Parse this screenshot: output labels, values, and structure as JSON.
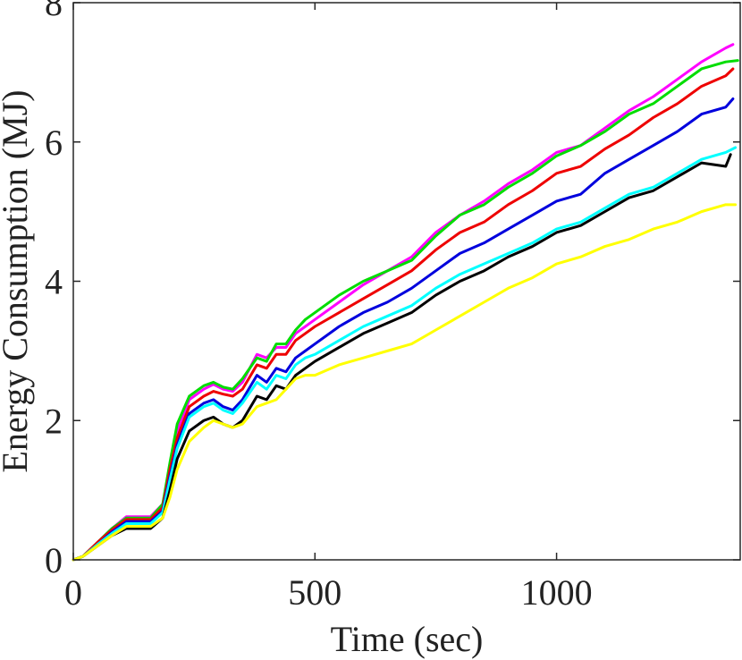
{
  "chart_data": {
    "type": "line",
    "title": "",
    "xlabel": "Time (sec)",
    "ylabel": "Energy Consumption (MJ)",
    "xlim": [
      0,
      1380
    ],
    "ylim": [
      0,
      8
    ],
    "xticks": [
      0,
      500,
      1000
    ],
    "yticks": [
      0,
      2,
      4,
      6,
      8
    ],
    "grid": false,
    "series": [
      {
        "color": "#ff00ff",
        "x": [
          0,
          20,
          50,
          80,
          110,
          160,
          185,
          200,
          215,
          240,
          270,
          290,
          310,
          330,
          350,
          380,
          400,
          420,
          440,
          460,
          480,
          500,
          550,
          600,
          650,
          700,
          750,
          800,
          850,
          900,
          950,
          1000,
          1050,
          1100,
          1150,
          1200,
          1250,
          1300,
          1350,
          1365
        ],
        "y": [
          0,
          0.05,
          0.25,
          0.45,
          0.62,
          0.62,
          0.8,
          1.35,
          1.85,
          2.3,
          2.45,
          2.52,
          2.45,
          2.42,
          2.55,
          2.95,
          2.9,
          3.05,
          3.05,
          3.25,
          3.35,
          3.45,
          3.7,
          3.95,
          4.15,
          4.35,
          4.7,
          4.95,
          5.15,
          5.4,
          5.6,
          5.85,
          5.95,
          6.2,
          6.45,
          6.65,
          6.9,
          7.15,
          7.35,
          7.4
        ]
      },
      {
        "color": "#00dd00",
        "x": [
          0,
          20,
          50,
          80,
          110,
          160,
          185,
          200,
          215,
          240,
          270,
          290,
          310,
          330,
          350,
          380,
          400,
          420,
          440,
          460,
          480,
          500,
          550,
          600,
          650,
          700,
          750,
          800,
          850,
          900,
          950,
          1000,
          1050,
          1100,
          1150,
          1200,
          1250,
          1300,
          1350,
          1375
        ],
        "y": [
          0,
          0.05,
          0.25,
          0.45,
          0.6,
          0.6,
          0.8,
          1.4,
          1.95,
          2.35,
          2.5,
          2.55,
          2.48,
          2.45,
          2.6,
          2.9,
          2.85,
          3.1,
          3.1,
          3.3,
          3.45,
          3.55,
          3.8,
          4.0,
          4.15,
          4.3,
          4.65,
          4.95,
          5.1,
          5.35,
          5.55,
          5.8,
          5.95,
          6.15,
          6.4,
          6.55,
          6.8,
          7.05,
          7.15,
          7.17
        ]
      },
      {
        "color": "#ee0000",
        "x": [
          0,
          20,
          50,
          80,
          110,
          160,
          185,
          200,
          215,
          240,
          270,
          290,
          310,
          330,
          350,
          380,
          400,
          420,
          440,
          460,
          480,
          500,
          550,
          600,
          650,
          700,
          750,
          800,
          850,
          900,
          950,
          1000,
          1050,
          1100,
          1150,
          1200,
          1250,
          1300,
          1350,
          1365
        ],
        "y": [
          0,
          0.05,
          0.25,
          0.43,
          0.58,
          0.58,
          0.75,
          1.3,
          1.75,
          2.2,
          2.35,
          2.42,
          2.38,
          2.35,
          2.45,
          2.8,
          2.75,
          2.95,
          2.95,
          3.15,
          3.25,
          3.35,
          3.55,
          3.75,
          3.95,
          4.15,
          4.45,
          4.7,
          4.85,
          5.1,
          5.3,
          5.55,
          5.65,
          5.9,
          6.1,
          6.35,
          6.55,
          6.8,
          6.95,
          7.05
        ]
      },
      {
        "color": "#0000dd",
        "x": [
          0,
          20,
          50,
          80,
          110,
          160,
          185,
          200,
          215,
          240,
          270,
          290,
          310,
          330,
          350,
          380,
          400,
          420,
          440,
          460,
          480,
          500,
          550,
          600,
          650,
          700,
          750,
          800,
          850,
          900,
          950,
          1000,
          1050,
          1100,
          1150,
          1200,
          1250,
          1300,
          1350,
          1365
        ],
        "y": [
          0,
          0.05,
          0.22,
          0.4,
          0.55,
          0.55,
          0.7,
          1.2,
          1.65,
          2.1,
          2.25,
          2.3,
          2.2,
          2.15,
          2.3,
          2.65,
          2.55,
          2.75,
          2.7,
          2.9,
          3.0,
          3.1,
          3.35,
          3.55,
          3.7,
          3.9,
          4.15,
          4.4,
          4.55,
          4.75,
          4.95,
          5.15,
          5.25,
          5.55,
          5.75,
          5.95,
          6.15,
          6.4,
          6.5,
          6.62
        ]
      },
      {
        "color": "#00ffff",
        "x": [
          0,
          20,
          50,
          80,
          110,
          160,
          185,
          200,
          215,
          240,
          270,
          290,
          310,
          330,
          350,
          380,
          400,
          420,
          440,
          460,
          480,
          500,
          550,
          600,
          650,
          700,
          750,
          800,
          850,
          900,
          950,
          1000,
          1050,
          1100,
          1150,
          1200,
          1250,
          1300,
          1350,
          1370
        ],
        "y": [
          0,
          0.05,
          0.22,
          0.38,
          0.52,
          0.52,
          0.68,
          1.15,
          1.6,
          2.05,
          2.2,
          2.25,
          2.15,
          2.1,
          2.25,
          2.55,
          2.45,
          2.65,
          2.6,
          2.8,
          2.9,
          2.95,
          3.15,
          3.35,
          3.5,
          3.65,
          3.9,
          4.1,
          4.25,
          4.4,
          4.55,
          4.75,
          4.85,
          5.05,
          5.25,
          5.35,
          5.55,
          5.75,
          5.85,
          5.92
        ]
      },
      {
        "color": "#000000",
        "x": [
          0,
          20,
          50,
          80,
          110,
          160,
          185,
          200,
          215,
          240,
          270,
          290,
          310,
          330,
          350,
          380,
          400,
          420,
          440,
          460,
          480,
          500,
          550,
          600,
          650,
          700,
          750,
          800,
          850,
          900,
          950,
          1000,
          1050,
          1100,
          1150,
          1200,
          1250,
          1300,
          1350,
          1360
        ],
        "y": [
          0,
          0.05,
          0.2,
          0.35,
          0.45,
          0.45,
          0.6,
          1.0,
          1.45,
          1.85,
          2.0,
          2.05,
          1.95,
          1.9,
          2.0,
          2.35,
          2.3,
          2.5,
          2.45,
          2.65,
          2.75,
          2.85,
          3.05,
          3.25,
          3.4,
          3.55,
          3.8,
          4.0,
          4.15,
          4.35,
          4.5,
          4.7,
          4.8,
          5.0,
          5.2,
          5.3,
          5.5,
          5.7,
          5.65,
          5.82
        ]
      },
      {
        "color": "#ffff00",
        "x": [
          0,
          20,
          50,
          80,
          110,
          160,
          185,
          200,
          215,
          240,
          270,
          290,
          310,
          330,
          350,
          380,
          400,
          420,
          440,
          460,
          480,
          500,
          550,
          600,
          650,
          700,
          750,
          800,
          850,
          900,
          950,
          1000,
          1050,
          1100,
          1150,
          1200,
          1250,
          1300,
          1350,
          1370
        ],
        "y": [
          0,
          0.05,
          0.2,
          0.35,
          0.48,
          0.48,
          0.6,
          0.9,
          1.3,
          1.7,
          1.9,
          2.0,
          1.95,
          1.9,
          1.95,
          2.2,
          2.25,
          2.3,
          2.45,
          2.6,
          2.65,
          2.65,
          2.8,
          2.9,
          3.0,
          3.1,
          3.3,
          3.5,
          3.7,
          3.9,
          4.05,
          4.25,
          4.35,
          4.5,
          4.6,
          4.75,
          4.85,
          5.0,
          5.1,
          5.1
        ]
      }
    ]
  }
}
